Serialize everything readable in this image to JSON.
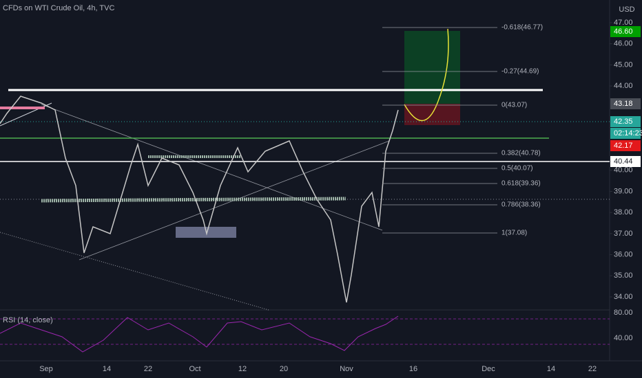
{
  "header": {
    "title": "CFDs on WTI Crude Oil, 4h, TVC",
    "currency": "USD"
  },
  "price_axis": [
    {
      "value": 47,
      "label": "47.00"
    },
    {
      "value": 46,
      "label": "46.00"
    },
    {
      "value": 45,
      "label": "45.00"
    },
    {
      "value": 44,
      "label": "44.00"
    },
    {
      "value": 40,
      "label": "40.00"
    },
    {
      "value": 39,
      "label": "39.00"
    },
    {
      "value": 38,
      "label": "38.00"
    },
    {
      "value": 37,
      "label": "37.00"
    },
    {
      "value": 36,
      "label": "36.00"
    },
    {
      "value": 35,
      "label": "35.00"
    },
    {
      "value": 34,
      "label": "34.00"
    }
  ],
  "price_tags": [
    {
      "label": "46.60",
      "color": "#00a000"
    },
    {
      "label": "43.18",
      "color": "#4a4e57"
    },
    {
      "label": "42.35",
      "color": "#26a69a"
    },
    {
      "label": "02:14:23",
      "color": "#26a69a"
    },
    {
      "label": "42.17",
      "color": "#e3191b"
    },
    {
      "label": "40.44",
      "color": "#ffffff"
    }
  ],
  "fib_levels": [
    "-0.618(46.77)",
    "-0.27(44.69)",
    "0(43.07)",
    "0.382(40.78)",
    "0.5(40.07)",
    "0.618(39.36)",
    "0.786(38.36)",
    "1(37.08)"
  ],
  "rsi": {
    "label": "RSI (14, close)",
    "axis": [
      "80.00",
      "40.00"
    ]
  },
  "date_axis": [
    "Sep",
    "14",
    "22",
    "Oct",
    "12",
    "20",
    "Nov",
    "16",
    "Dec",
    "14",
    "22"
  ]
}
